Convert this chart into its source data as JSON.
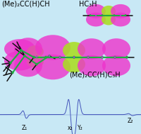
{
  "bg_color": "#c8e8f5",
  "fig_width": 2.01,
  "fig_height": 1.89,
  "dpi": 100,
  "spectrum": {
    "line_color": "#4455bb",
    "line_width": 0.7
  },
  "labels": {
    "top_left": "(Me)₂CC(H)CH",
    "top_right": "HC₃H",
    "bottom_center": "(Me)₂CC(H)C₃H",
    "z1": "Z₁",
    "x2": "x₂",
    "y2": "Y₂",
    "z2": "Z₂",
    "fontsize": 7.0
  },
  "orbitals": {
    "magenta": "#ee33cc",
    "green_yellow": "#aadd22",
    "atom_green": "#22aa44",
    "atom_black": "#111111",
    "atom_purple": "#aa44cc"
  }
}
